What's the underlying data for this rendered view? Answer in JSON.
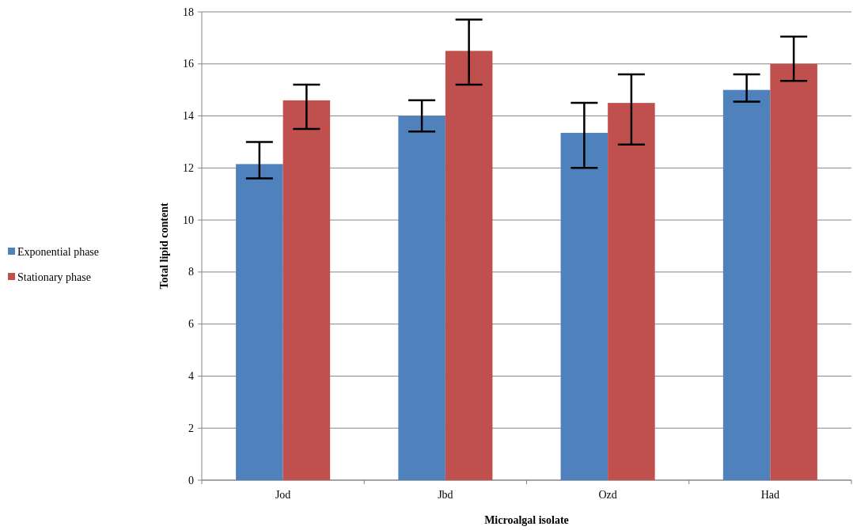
{
  "chart_data": {
    "type": "bar",
    "xlabel": "Microalgal isolate",
    "ylabel": "Total lipid content",
    "categories": [
      "Jod",
      "Jbd",
      "Ozd",
      "Had"
    ],
    "series": [
      {
        "name": "Exponential phase",
        "color": "#4f81bd",
        "values": [
          12.15,
          14.0,
          13.35,
          15.0
        ],
        "errors": [
          [
            11.6,
            13.0
          ],
          [
            13.4,
            14.6
          ],
          [
            12.0,
            14.5
          ],
          [
            14.55,
            15.6
          ]
        ]
      },
      {
        "name": "Stationary phase",
        "color": "#c0504d",
        "values": [
          14.6,
          16.5,
          14.5,
          16.0
        ],
        "errors": [
          [
            13.5,
            15.2
          ],
          [
            15.2,
            17.7
          ],
          [
            12.9,
            15.6
          ],
          [
            15.35,
            17.05
          ]
        ]
      }
    ],
    "ylim": [
      0,
      18
    ],
    "yticks": [
      0,
      2,
      4,
      6,
      8,
      10,
      12,
      14,
      16,
      18
    ],
    "grid": "y",
    "legend": "left"
  }
}
